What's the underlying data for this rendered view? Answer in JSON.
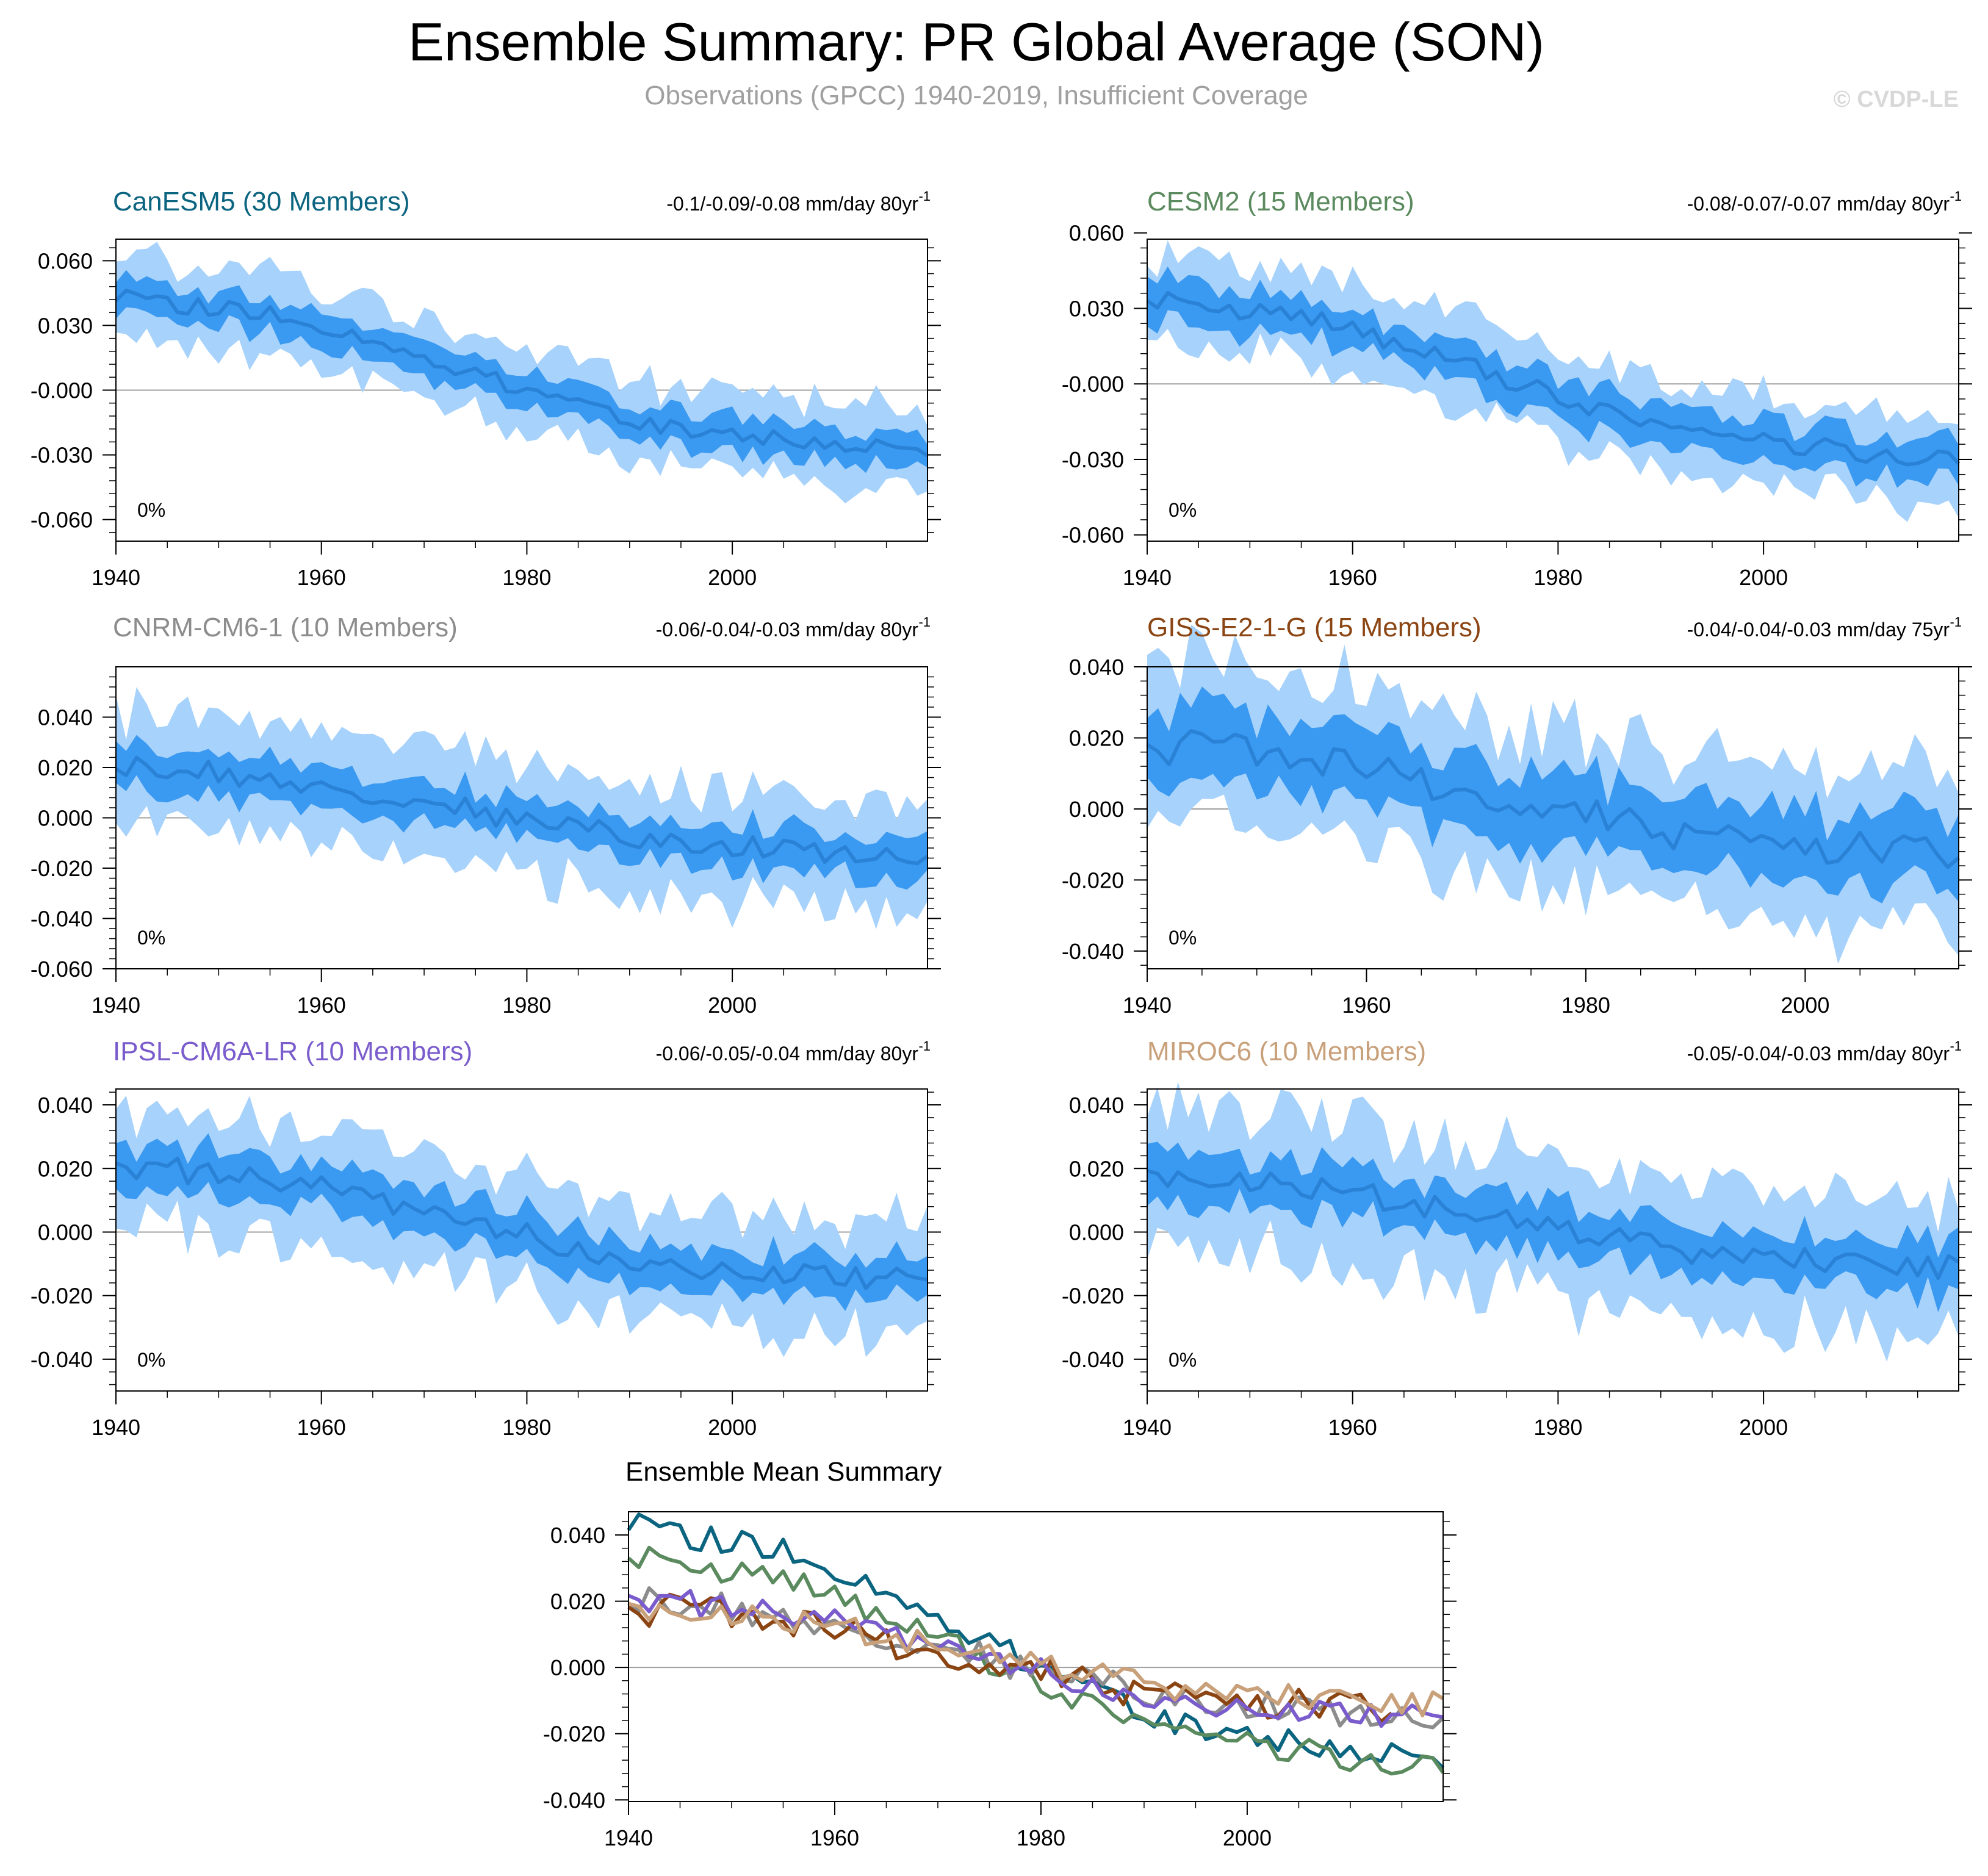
{
  "title": "Ensemble Summary: PR Global Average (SON)",
  "subtitle": "Observations (GPCC) 1940-2019, Insufficient Coverage",
  "watermark": "© CVDP-LE",
  "colors": {
    "band_outer": "#a7d2fb",
    "band_inner": "#3a99f0",
    "mean_line": "#2a82d6",
    "zero_line": "#a0a0a0"
  },
  "chart_data": [
    {
      "type": "area",
      "id": "canesm5",
      "title": "CanESM5 (30 Members)",
      "title_color": "#0c6580",
      "trend_text": "-0.1/-0.09/-0.08 mm/day 80yr",
      "trend_sup": "-1",
      "pct_label": "0%",
      "xlim": [
        1940,
        2019
      ],
      "ylim": [
        -0.07,
        0.07
      ],
      "yticks": [
        0.06,
        0.03,
        -0.0,
        -0.03,
        -0.06
      ],
      "ytick_labels": [
        "0.060",
        "0.030",
        "-0.000",
        "-0.030",
        "-0.060"
      ],
      "xticks": [
        1940,
        1960,
        1980,
        2000
      ],
      "xtick_labels": [
        "1940",
        "1960",
        "1980",
        "2000"
      ],
      "start": 0.043,
      "end": -0.029,
      "noise": 0.004,
      "inner": 0.008,
      "outer": 0.017
    },
    {
      "type": "area",
      "id": "cesm2",
      "title": "CESM2 (15 Members)",
      "title_color": "#5a8a5e",
      "trend_text": "-0.08/-0.07/-0.07 mm/day 80yr",
      "trend_sup": "-1",
      "pct_label": "0%",
      "xlim": [
        1940,
        2019
      ],
      "ylim": [
        -0.0625,
        0.0575
      ],
      "yticks": [
        0.06,
        0.03,
        -0.0,
        -0.03,
        -0.06
      ],
      "ytick_labels": [
        "0.060",
        "0.030",
        "-0.000",
        "-0.030",
        "-0.060"
      ],
      "xticks": [
        1940,
        1960,
        1980,
        2000
      ],
      "xtick_labels": [
        "1940",
        "1960",
        "1980",
        "2000"
      ],
      "start": 0.034,
      "end": -0.031,
      "noise": 0.004,
      "inner": 0.008,
      "outer": 0.016
    },
    {
      "type": "area",
      "id": "cnrm",
      "title": "CNRM-CM6-1 (10 Members)",
      "title_color": "#8c8c8c",
      "trend_text": "-0.06/-0.04/-0.03 mm/day 80yr",
      "trend_sup": "-1",
      "pct_label": "0%",
      "xlim": [
        1940,
        2019
      ],
      "ylim": [
        -0.06,
        0.06
      ],
      "yticks": [
        0.04,
        0.02,
        0.0,
        -0.02,
        -0.04,
        -0.06
      ],
      "ytick_labels": [
        "0.040",
        "0.020",
        "0.000",
        "-0.020",
        "-0.040",
        "-0.060"
      ],
      "xticks": [
        1940,
        1960,
        1980,
        2000
      ],
      "xtick_labels": [
        "1940",
        "1960",
        "1980",
        "2000"
      ],
      "start": 0.02,
      "end": -0.015,
      "noise": 0.005,
      "inner": 0.008,
      "outer": 0.02
    },
    {
      "type": "area",
      "id": "giss",
      "title": "GISS-E2-1-G (15 Members)",
      "title_color": "#8b4513",
      "trend_text": "-0.04/-0.04/-0.03 mm/day 75yr",
      "trend_sup": "-1",
      "pct_label": "0%",
      "xlim": [
        1940,
        2014
      ],
      "ylim": [
        -0.045,
        0.04
      ],
      "yticks": [
        0.04,
        0.02,
        0.0,
        -0.02,
        -0.04
      ],
      "ytick_labels": [
        "0.040",
        "0.020",
        "0.000",
        "-0.020",
        "-0.040"
      ],
      "xticks": [
        1940,
        1960,
        1980,
        2000
      ],
      "xtick_labels": [
        "1940",
        "1960",
        "1980",
        "2000"
      ],
      "start": 0.018,
      "end": -0.013,
      "noise": 0.005,
      "inner": 0.01,
      "outer": 0.02
    },
    {
      "type": "area",
      "id": "ipsl",
      "title": "IPSL-CM6A-LR (10 Members)",
      "title_color": "#7a5ccc",
      "trend_text": "-0.06/-0.05/-0.04 mm/day 80yr",
      "trend_sup": "-1",
      "pct_label": "0%",
      "xlim": [
        1940,
        2019
      ],
      "ylim": [
        -0.05,
        0.045
      ],
      "yticks": [
        0.04,
        0.02,
        0.0,
        -0.02,
        -0.04
      ],
      "ytick_labels": [
        "0.040",
        "0.020",
        "0.000",
        "-0.020",
        "-0.040"
      ],
      "xticks": [
        1940,
        1960,
        1980,
        2000
      ],
      "xtick_labels": [
        "1940",
        "1960",
        "1980",
        "2000"
      ],
      "start": 0.021,
      "end": -0.016,
      "noise": 0.004,
      "inner": 0.007,
      "outer": 0.016
    },
    {
      "type": "area",
      "id": "miroc6",
      "title": "MIROC6 (10 Members)",
      "title_color": "#c8a07a",
      "trend_text": "-0.05/-0.04/-0.03 mm/day 80yr",
      "trend_sup": "-1",
      "pct_label": "0%",
      "xlim": [
        1940,
        2019
      ],
      "ylim": [
        -0.05,
        0.045
      ],
      "yticks": [
        0.04,
        0.02,
        0.0,
        -0.02,
        -0.04
      ],
      "ytick_labels": [
        "0.040",
        "0.020",
        "0.000",
        "-0.020",
        "-0.040"
      ],
      "xticks": [
        1940,
        1960,
        1980,
        2000
      ],
      "xtick_labels": [
        "1940",
        "1960",
        "1980",
        "2000"
      ],
      "start": 0.018,
      "end": -0.011,
      "noise": 0.004,
      "inner": 0.008,
      "outer": 0.02
    },
    {
      "type": "line",
      "id": "summary",
      "title": "Ensemble Mean Summary",
      "xlim": [
        1940,
        2019
      ],
      "ylim": [
        -0.0405,
        0.047
      ],
      "yticks": [
        0.04,
        0.02,
        0.0,
        -0.02,
        -0.04
      ],
      "ytick_labels": [
        "0.040",
        "0.020",
        "0.000",
        "-0.020",
        "-0.040"
      ],
      "xticks": [
        1940,
        1960,
        1980,
        2000
      ],
      "xtick_labels": [
        "1940",
        "1960",
        "1980",
        "2000"
      ],
      "series": [
        {
          "name": "CanESM5",
          "color": "#0c6580",
          "ref": "canesm5"
        },
        {
          "name": "CESM2",
          "color": "#5a8a5e",
          "ref": "cesm2"
        },
        {
          "name": "CNRM-CM6-1",
          "color": "#8c8c8c",
          "ref": "cnrm"
        },
        {
          "name": "GISS-E2-1-G",
          "color": "#8b4513",
          "ref": "giss"
        },
        {
          "name": "IPSL-CM6A-LR",
          "color": "#7a5ccc",
          "ref": "ipsl"
        },
        {
          "name": "MIROC6",
          "color": "#c8a07a",
          "ref": "miroc6"
        }
      ]
    }
  ]
}
